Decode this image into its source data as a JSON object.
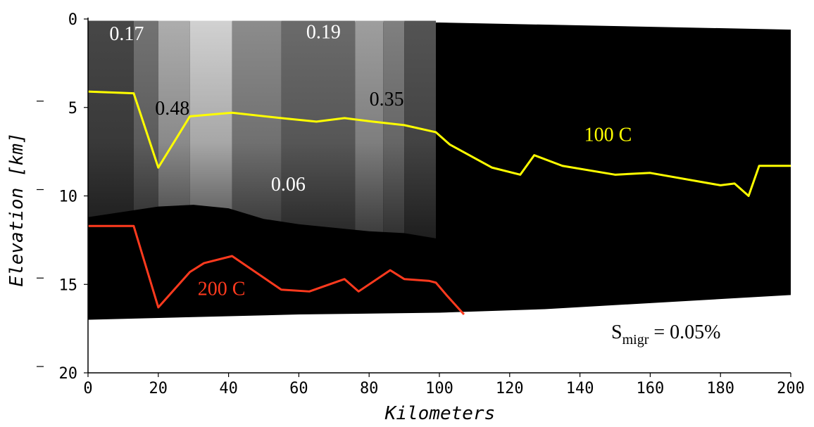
{
  "chart_data": {
    "type": "line",
    "title": "",
    "xlabel": "Kilometers",
    "ylabel": "Elevation [km]",
    "xlim": [
      0,
      200
    ],
    "ylim": [
      -20,
      0
    ],
    "xticks": [
      "0",
      "20",
      "40",
      "60",
      "80",
      "100",
      "120",
      "140",
      "160",
      "180",
      "200"
    ],
    "yticks": [
      "0",
      "5",
      "10",
      "15",
      "20"
    ],
    "grid": false,
    "colors": {
      "isotherm_100": "#ffff00",
      "isotherm_200": "#ff3a1e",
      "section_fill": "#000000",
      "annotation_dark": "#000000",
      "annotation_light": "#ffffff"
    },
    "section_top": [
      [
        0,
        -0.1
      ],
      [
        100,
        -0.2
      ],
      [
        200,
        -0.6
      ]
    ],
    "section_bottom": [
      [
        0,
        -17.0
      ],
      [
        60,
        -16.7
      ],
      [
        100,
        -16.6
      ],
      [
        130,
        -16.4
      ],
      [
        200,
        -15.6
      ]
    ],
    "image_region": {
      "x": [
        0,
        99
      ],
      "top_y": -0.1,
      "bottom": [
        [
          0,
          -11.2
        ],
        [
          20,
          -10.6
        ],
        [
          30,
          -10.5
        ],
        [
          40,
          -10.7
        ],
        [
          50,
          -11.3
        ],
        [
          60,
          -11.6
        ],
        [
          70,
          -11.8
        ],
        [
          80,
          -12.0
        ],
        [
          90,
          -12.1
        ],
        [
          99,
          -12.4
        ]
      ],
      "columns": [
        {
          "x": [
            0,
            13
          ],
          "shade": 0.28
        },
        {
          "x": [
            13,
            20
          ],
          "shade": 0.45
        },
        {
          "x": [
            20,
            29
          ],
          "shade": 0.68
        },
        {
          "x": [
            29,
            41
          ],
          "shade": 0.82
        },
        {
          "x": [
            41,
            55
          ],
          "shade": 0.55
        },
        {
          "x": [
            55,
            76
          ],
          "shade": 0.42
        },
        {
          "x": [
            76,
            84
          ],
          "shade": 0.62
        },
        {
          "x": [
            84,
            90
          ],
          "shade": 0.5
        },
        {
          "x": [
            90,
            99
          ],
          "shade": 0.33
        }
      ]
    },
    "series": [
      {
        "name": "100 C",
        "color": "#ffff00",
        "x": [
          0,
          13,
          20,
          29,
          41,
          55,
          65,
          73,
          81,
          90,
          99,
          103,
          115,
          123,
          127,
          135,
          150,
          160,
          180,
          184,
          188,
          191,
          200
        ],
        "y": [
          -4.1,
          -4.2,
          -8.4,
          -5.5,
          -5.3,
          -5.6,
          -5.8,
          -5.6,
          -5.8,
          -6.0,
          -6.4,
          -7.1,
          -8.4,
          -8.8,
          -7.7,
          -8.3,
          -8.8,
          -8.7,
          -9.4,
          -9.3,
          -10.0,
          -8.3,
          -8.3
        ]
      },
      {
        "name": "200 C",
        "color": "#ff3a1e",
        "x": [
          0,
          13,
          20,
          29,
          33,
          41,
          55,
          63,
          73,
          77,
          86,
          90,
          97,
          99,
          102,
          107
        ],
        "y": [
          -11.7,
          -11.7,
          -16.3,
          -14.3,
          -13.8,
          -13.4,
          -15.3,
          -15.4,
          -14.7,
          -15.4,
          -14.2,
          -14.7,
          -14.8,
          -14.9,
          -15.6,
          -16.7
        ]
      }
    ],
    "annotations": [
      {
        "text": "0.17",
        "x": 11,
        "y": -1.2,
        "color": "#ffffff"
      },
      {
        "text": "0.19",
        "x": 67,
        "y": -1.1,
        "color": "#ffffff"
      },
      {
        "text": "0.48",
        "x": 24,
        "y": -5.4,
        "color": "#000000"
      },
      {
        "text": "0.35",
        "x": 85,
        "y": -4.9,
        "color": "#000000"
      },
      {
        "text": "0.06",
        "x": 57,
        "y": -9.7,
        "color": "#ffffff"
      },
      {
        "text": "100 C",
        "x": 148,
        "y": -6.9,
        "color": "#ffff00"
      },
      {
        "text": "200 C",
        "x": 38,
        "y": -15.6,
        "color": "#ff3a1e"
      }
    ],
    "legend_text": {
      "main": "S",
      "sub": "migr",
      "rest": " = 0.05%"
    }
  }
}
